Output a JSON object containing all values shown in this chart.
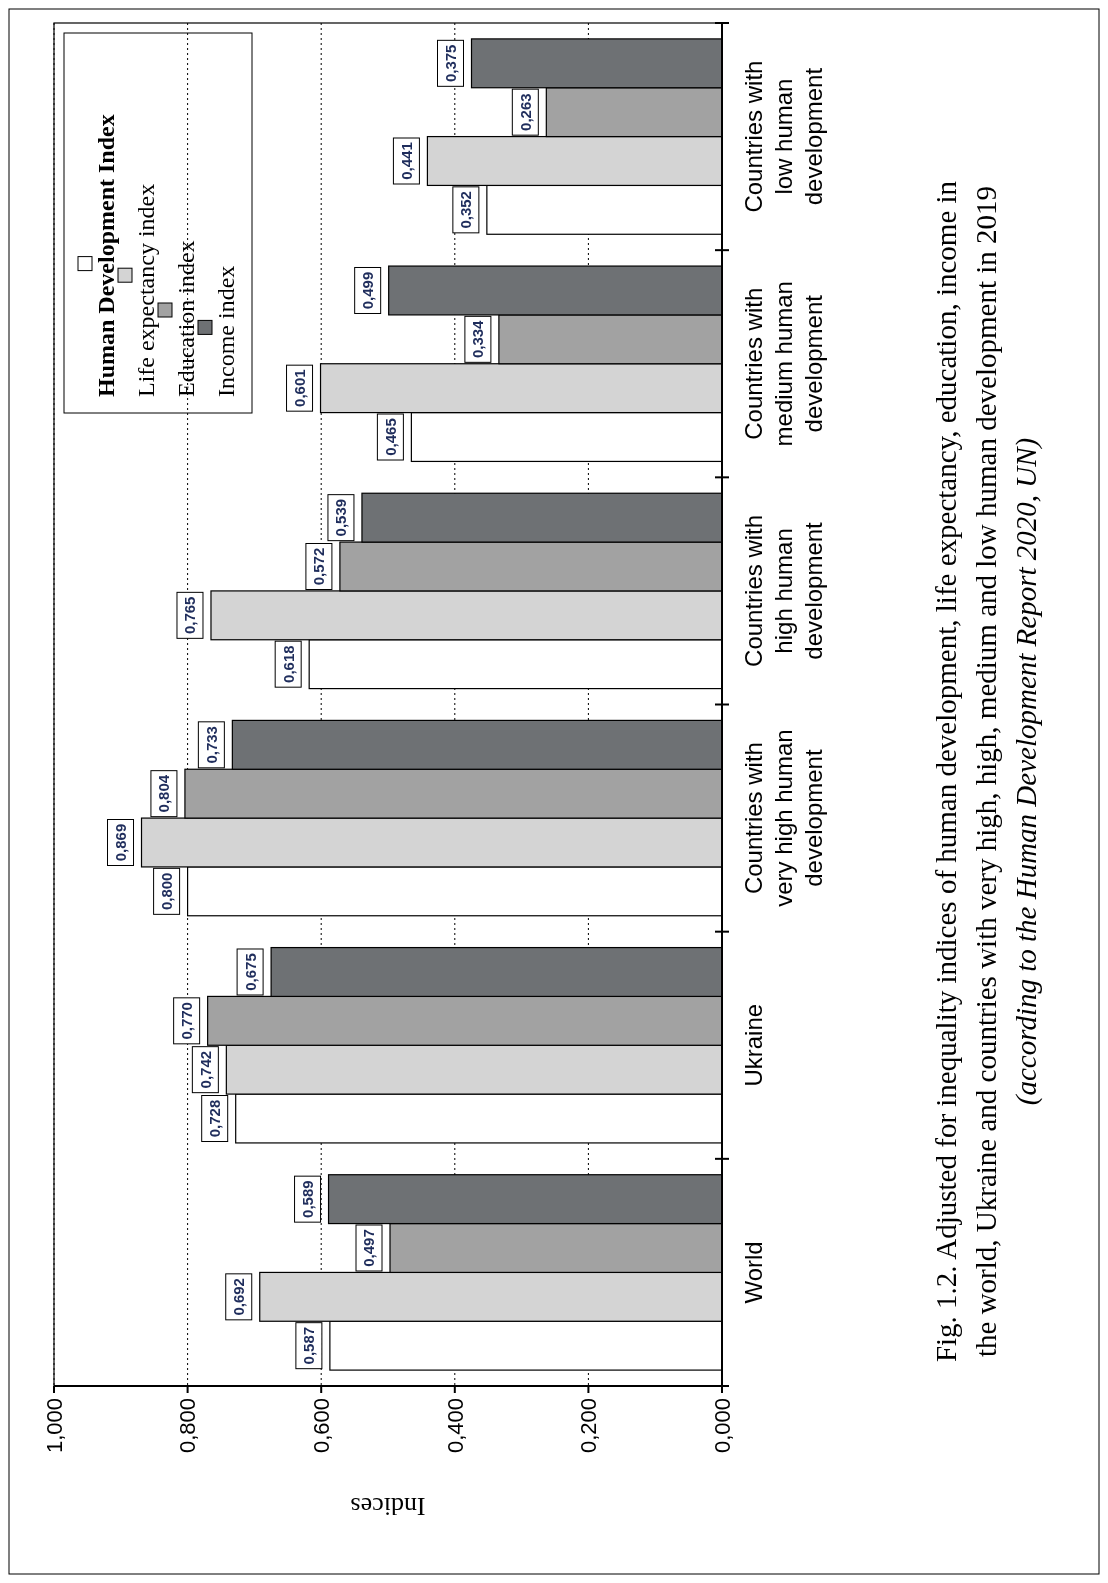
{
  "chart_data": {
    "type": "bar",
    "orientation": "horizontal",
    "title": "Fig. 1.2. Adjusted for inequality indices of human development, life expectancy, education, income in the world, Ukraine and countries with very high, high, medium and low human development in 2019",
    "subtitle": "(according to the Human Development Report 2020, UN)",
    "xlabel": "Indices",
    "categories": [
      "Countries with low human development",
      "Countries with medium human development",
      "Countries with high human development",
      "Countries with very high human development",
      "Ukraine",
      "World"
    ],
    "series": [
      {
        "name": "Human Development Index",
        "color": "#ffffff",
        "values": [
          0.352,
          0.465,
          0.618,
          0.8,
          0.728,
          0.587
        ],
        "value_labels": [
          "0,352",
          "0,465",
          "0,618",
          "0,800",
          "0,728",
          "0,587"
        ]
      },
      {
        "name": "Life expectancy index",
        "color": "#d4d4d4",
        "values": [
          0.441,
          0.601,
          0.765,
          0.869,
          0.742,
          0.692
        ],
        "value_labels": [
          "0,441",
          "0,601",
          "0,765",
          "0,869",
          "0,742",
          "0,692"
        ]
      },
      {
        "name": "Education index",
        "color": "#a2a2a2",
        "values": [
          0.263,
          0.334,
          0.572,
          0.804,
          0.77,
          0.497
        ],
        "value_labels": [
          "0,263",
          "0,334",
          "0,572",
          "0,804",
          "0,770",
          "0,497"
        ]
      },
      {
        "name": "Income index",
        "color": "#6e7174",
        "values": [
          0.375,
          0.499,
          0.539,
          0.733,
          0.675,
          0.589
        ],
        "value_labels": [
          "0,375",
          "0,499",
          "0,539",
          "0,733",
          "0,675",
          "0,589"
        ]
      }
    ],
    "xlim": [
      1,
      0
    ],
    "xticks": [
      {
        "value": 1,
        "label": "1,000"
      },
      {
        "value": 0.8,
        "label": "0,800"
      },
      {
        "value": 0.6,
        "label": "0,600"
      },
      {
        "value": 0.4,
        "label": "0,400"
      },
      {
        "value": 0.2,
        "label": "0,200"
      },
      {
        "value": 0,
        "label": "0,000"
      }
    ],
    "grid": "x",
    "legend": "top left"
  }
}
